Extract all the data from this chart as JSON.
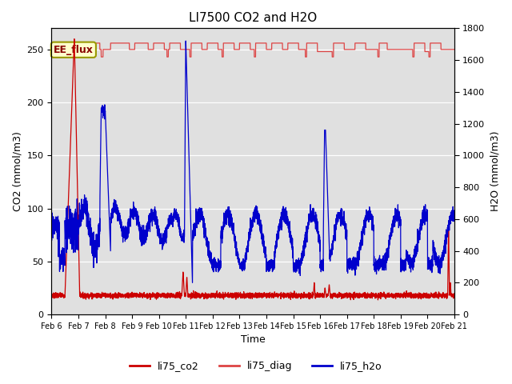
{
  "title": "LI7500 CO2 and H2O",
  "xlabel": "Time",
  "ylabel_left": "CO2 (mmol/m3)",
  "ylabel_right": "H2O (mmol/m3)",
  "ylim_left": [
    0,
    270
  ],
  "ylim_right": [
    0,
    1800
  ],
  "bg_color": "#e0e0e0",
  "annotation_text": "EE_flux",
  "annotation_bg": "#ffffcc",
  "annotation_border": "#999900",
  "xtick_labels": [
    "Feb 6",
    "Feb 7",
    "Feb 8",
    "Feb 9",
    "Feb 10",
    "Feb 11",
    "Feb 12",
    "Feb 13",
    "Feb 14",
    "Feb 15",
    "Feb 16",
    "Feb 17",
    "Feb 18",
    "Feb 19",
    "Feb 20",
    "Feb 21"
  ],
  "legend_entries": [
    "li75_co2",
    "li75_diag",
    "li75_h2o"
  ],
  "co2_color": "#cc0000",
  "diag_color": "#dd4444",
  "h2o_color": "#0000cc",
  "n_days": 15,
  "pts_per_day": 300
}
